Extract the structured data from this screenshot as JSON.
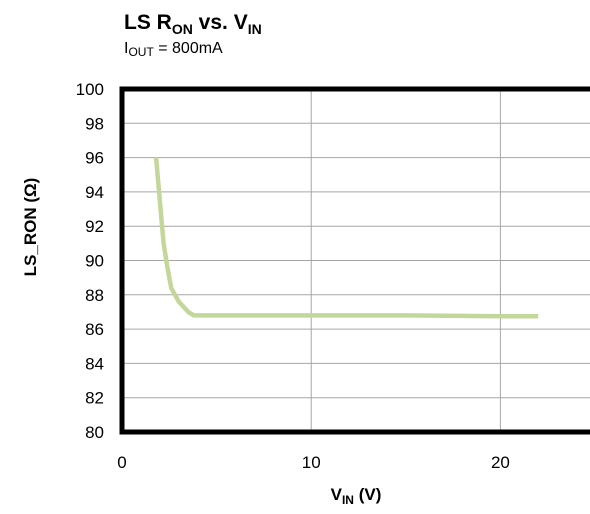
{
  "chart_data": {
    "type": "line",
    "title": {
      "main": "LS R",
      "main_sub": "ON",
      "mid": " vs. V",
      "end_sub": "IN"
    },
    "subtitle": {
      "pre": "I",
      "sub": "OUT",
      "post": " = 800mA"
    },
    "xlabel": {
      "main": "V",
      "sub": "IN",
      "post": " (V)"
    },
    "ylabel": "LS_RON (Ω)",
    "xlim": [
      0,
      25
    ],
    "ylim": [
      80,
      100
    ],
    "x_ticks": [
      0,
      10,
      20
    ],
    "y_ticks": [
      80,
      82,
      84,
      86,
      88,
      90,
      92,
      94,
      96,
      98,
      100
    ],
    "grid": true,
    "series": [
      {
        "color": "#c4d79b",
        "x": [
          1.8,
          2.0,
          2.2,
          2.4,
          2.6,
          3.0,
          3.5,
          3.8,
          5,
          10,
          15,
          20,
          22
        ],
        "y": [
          96.0,
          93.5,
          91.0,
          89.6,
          88.4,
          87.6,
          87.0,
          86.8,
          86.8,
          86.8,
          86.8,
          86.75,
          86.75
        ]
      }
    ]
  }
}
